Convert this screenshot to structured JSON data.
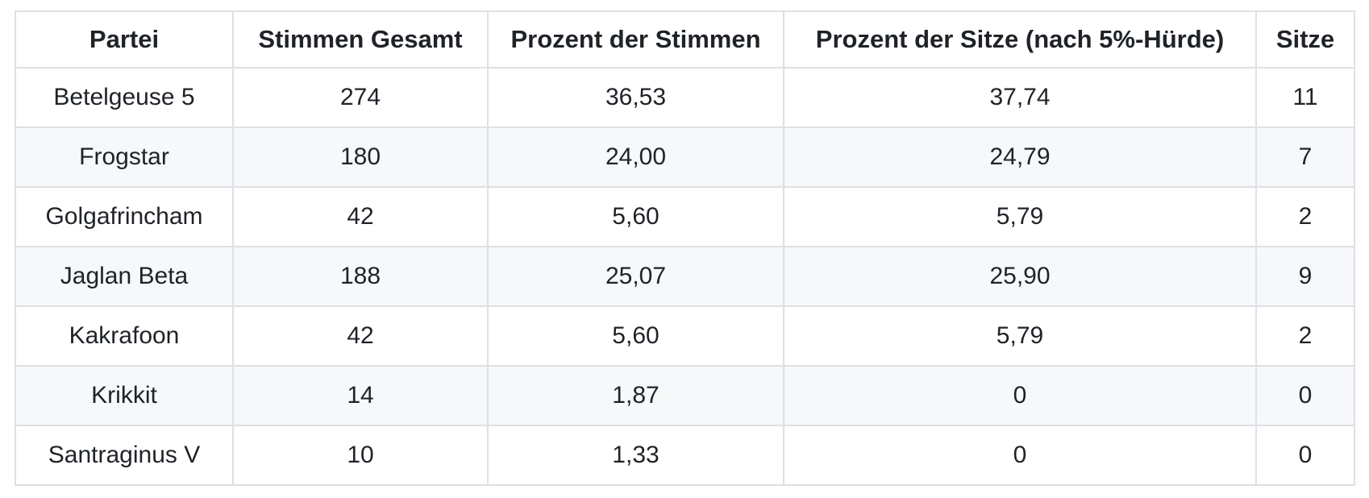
{
  "table": {
    "columns": [
      "Partei",
      "Stimmen Gesamt",
      "Prozent der Stimmen",
      "Prozent der Sitze (nach 5%-Hürde)",
      "Sitze"
    ],
    "rows": [
      [
        "Betelgeuse 5",
        "274",
        "36,53",
        "37,74",
        "11"
      ],
      [
        "Frogstar",
        "180",
        "24,00",
        "24,79",
        "7"
      ],
      [
        "Golgafrincham",
        "42",
        "5,60",
        "5,79",
        "2"
      ],
      [
        "Jaglan Beta",
        "188",
        "25,07",
        "25,90",
        "9"
      ],
      [
        "Kakrafoon",
        "42",
        "5,60",
        "5,79",
        "2"
      ],
      [
        "Krikkit",
        "14",
        "1,87",
        "0",
        "0"
      ],
      [
        "Santraginus V",
        "10",
        "1,33",
        "0",
        "0"
      ]
    ],
    "colors": {
      "stripe": "#f6f8fa",
      "border": "#dde0e4",
      "text": "#1f2328",
      "header_bg": "#ffffff",
      "page_bg": "#ffffff"
    }
  }
}
